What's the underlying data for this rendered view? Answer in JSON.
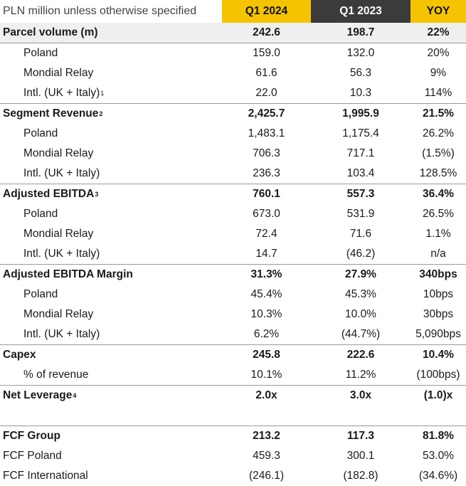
{
  "header": {
    "label": "PLN million unless otherwise specified",
    "col1": "Q1 2024",
    "col2": "Q1 2023",
    "col3": "YOY"
  },
  "rows": [
    {
      "label": "Parcel volume (m)",
      "sup": "",
      "v1": "242.6",
      "v2": "198.7",
      "v3": "22%",
      "bold": true,
      "indent": false,
      "sep": false,
      "shade": true
    },
    {
      "label": "Poland",
      "sup": "",
      "v1": "159.0",
      "v2": "132.0",
      "v3": "20%",
      "bold": false,
      "indent": true,
      "sep": true,
      "shade": false
    },
    {
      "label": "Mondial Relay",
      "sup": "",
      "v1": "61.6",
      "v2": "56.3",
      "v3": "9%",
      "bold": false,
      "indent": true,
      "sep": false,
      "shade": false
    },
    {
      "label": "Intl. (UK + Italy)",
      "sup": "1",
      "v1": "22.0",
      "v2": "10.3",
      "v3": "114%",
      "bold": false,
      "indent": true,
      "sep": false,
      "shade": false
    },
    {
      "label": "Segment Revenue",
      "sup": "2",
      "v1": "2,425.7",
      "v2": "1,995.9",
      "v3": "21.5%",
      "bold": true,
      "indent": false,
      "sep": true,
      "shade": false
    },
    {
      "label": "Poland",
      "sup": "",
      "v1": "1,483.1",
      "v2": "1,175.4",
      "v3": "26.2%",
      "bold": false,
      "indent": true,
      "sep": false,
      "shade": false
    },
    {
      "label": "Mondial Relay",
      "sup": "",
      "v1": "706.3",
      "v2": "717.1",
      "v3": "(1.5%)",
      "bold": false,
      "indent": true,
      "sep": false,
      "shade": false
    },
    {
      "label": "Intl. (UK + Italy)",
      "sup": "",
      "v1": "236.3",
      "v2": "103.4",
      "v3": "128.5%",
      "bold": false,
      "indent": true,
      "sep": false,
      "shade": false
    },
    {
      "label": "Adjusted EBITDA",
      "sup": "3",
      "v1": "760.1",
      "v2": "557.3",
      "v3": "36.4%",
      "bold": true,
      "indent": false,
      "sep": true,
      "shade": false
    },
    {
      "label": "Poland",
      "sup": "",
      "v1": "673.0",
      "v2": "531.9",
      "v3": "26.5%",
      "bold": false,
      "indent": true,
      "sep": false,
      "shade": false
    },
    {
      "label": "Mondial Relay",
      "sup": "",
      "v1": "72.4",
      "v2": "71.6",
      "v3": "1.1%",
      "bold": false,
      "indent": true,
      "sep": false,
      "shade": false
    },
    {
      "label": "Intl. (UK + Italy)",
      "sup": "",
      "v1": "14.7",
      "v2": "(46.2)",
      "v3": "n/a",
      "bold": false,
      "indent": true,
      "sep": false,
      "shade": false
    },
    {
      "label": "Adjusted EBITDA Margin",
      "sup": "",
      "v1": "31.3%",
      "v2": "27.9%",
      "v3": "340bps",
      "bold": true,
      "indent": false,
      "sep": true,
      "shade": false
    },
    {
      "label": "Poland",
      "sup": "",
      "v1": "45.4%",
      "v2": "45.3%",
      "v3": "10bps",
      "bold": false,
      "indent": true,
      "sep": false,
      "shade": false
    },
    {
      "label": "Mondial Relay",
      "sup": "",
      "v1": "10.3%",
      "v2": "10.0%",
      "v3": "30bps",
      "bold": false,
      "indent": true,
      "sep": false,
      "shade": false
    },
    {
      "label": "Intl. (UK + Italy)",
      "sup": "",
      "v1": "6.2%",
      "v2": "(44.7%)",
      "v3": "5,090bps",
      "bold": false,
      "indent": true,
      "sep": false,
      "shade": false
    },
    {
      "label": "Capex",
      "sup": "",
      "v1": "245.8",
      "v2": "222.6",
      "v3": "10.4%",
      "bold": true,
      "indent": false,
      "sep": true,
      "shade": false
    },
    {
      "label": "% of revenue",
      "sup": "",
      "v1": "10.1%",
      "v2": "11.2%",
      "v3": "(100bps)",
      "bold": false,
      "indent": true,
      "sep": false,
      "shade": false
    },
    {
      "label": "Net Leverage",
      "sup": "4",
      "v1": "2.0x",
      "v2": "3.0x",
      "v3": "(1.0)x",
      "bold": true,
      "indent": false,
      "sep": true,
      "shade": false
    },
    {
      "gap": true
    },
    {
      "label": "FCF Group",
      "sup": "",
      "v1": "213.2",
      "v2": "117.3",
      "v3": "81.8%",
      "bold": true,
      "indent": false,
      "sep": true,
      "shade": false
    },
    {
      "label": "FCF Poland",
      "sup": "",
      "v1": "459.3",
      "v2": "300.1",
      "v3": "53.0%",
      "bold": false,
      "indent": false,
      "sep": false,
      "shade": false
    },
    {
      "label": "FCF International",
      "sup": "",
      "v1": "(246.1)",
      "v2": "(182.8)",
      "v3": "(34.6%)",
      "bold": false,
      "indent": false,
      "sep": false,
      "shade": false
    }
  ]
}
